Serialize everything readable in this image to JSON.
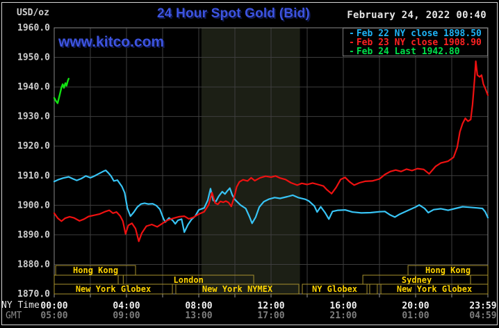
{
  "header": {
    "units": "USD/oz",
    "title": "24 Hour Spot Gold (Bid)",
    "datetime": "February 24, 2022 00:40",
    "watermark": "www.kitco.com"
  },
  "legend": {
    "items": [
      {
        "marker": "-",
        "label": "Feb 22 NY close 1898.50",
        "color": "#1fb4f7"
      },
      {
        "marker": "-",
        "label": "Feb 23 NY close 1908.90",
        "color": "#ff2222"
      },
      {
        "marker": "-",
        "label": "Feb 24 Last 1942.80",
        "color": "#00e04a"
      }
    ]
  },
  "axis_row_labels": {
    "ny": "NY Time",
    "gmt": "GMT"
  },
  "chart_data": {
    "type": "line",
    "title": "24 Hour Spot Gold (Bid)",
    "legend_position": "top-right",
    "grid": true,
    "background": "#000000",
    "colors": {
      "gridline": "#3e3e3e",
      "plot_border": "#878787",
      "tick": "#9a9a9a",
      "y_label": "#cfcfcf",
      "x_label_ny": "#f2f2f2",
      "x_label_gmt": "#7e7e7e",
      "shaded_band": "#1c1f15"
    },
    "y_axis": {
      "units": "USD/oz",
      "min": 1870,
      "max": 1960,
      "tick_step": 10,
      "tick_labels": [
        "1960.0",
        "1950.0",
        "1940.0",
        "1930.0",
        "1920.0",
        "1910.0",
        "1900.0",
        "1890.0",
        "1880.0",
        "1870.0"
      ]
    },
    "x_axis": {
      "label_top": "NY Time",
      "label_bottom": "GMT",
      "range_hours": [
        0,
        24
      ],
      "ticks": [
        {
          "h": 0,
          "ny": "00:00",
          "gmt": "05:00"
        },
        {
          "h": 4,
          "ny": "04:00",
          "gmt": "09:00"
        },
        {
          "h": 8,
          "ny": "08:00",
          "gmt": "13:00"
        },
        {
          "h": 12,
          "ny": "12:00",
          "gmt": "17:00"
        },
        {
          "h": 16,
          "ny": "16:00",
          "gmt": "21:00"
        },
        {
          "h": 20,
          "ny": "20:00",
          "gmt": "01:00"
        },
        {
          "h": 24,
          "ny": "23:59",
          "gmt": "04:59"
        }
      ]
    },
    "shaded_band_hours": [
      8.15,
      13.6
    ],
    "session_bars": {
      "label_color": "#ffd400",
      "border_color": "#a8922e",
      "rows": [
        [
          {
            "label": "Hong Kong",
            "s": 0.08,
            "e": 4.5
          },
          {
            "label": "Hong Kong",
            "s": 19.58,
            "e": 24
          }
        ],
        [
          {
            "label": "",
            "s": 0,
            "e": 3.54
          },
          {
            "label": "London",
            "s": 3.82,
            "e": 11.04
          },
          {
            "label": "Sydney",
            "s": 17.08,
            "e": 23.04
          },
          {
            "label": "",
            "s": 23.04,
            "e": 24
          }
        ],
        [
          {
            "label": "New York Globex",
            "s": 0,
            "e": 6.54
          },
          {
            "label": "New York NYMEX",
            "s": 6.73,
            "e": 13.54
          },
          {
            "label": "NY Globex",
            "s": 13.73,
            "e": 17.31
          },
          {
            "label": "",
            "s": 17.46,
            "e": 17.88
          },
          {
            "label": "New York Globex",
            "s": 18.08,
            "e": 24
          }
        ]
      ]
    },
    "series": [
      {
        "id": "feb22",
        "name": "Feb 22",
        "close": 1898.5,
        "color": "#38c4f5",
        "width": 2.2,
        "points": [
          [
            0,
            1908.0
          ],
          [
            0.25,
            1908.7
          ],
          [
            0.5,
            1909.2
          ],
          [
            0.8,
            1909.6
          ],
          [
            1.05,
            1908.9
          ],
          [
            1.25,
            1908.4
          ],
          [
            1.5,
            1909.0
          ],
          [
            1.75,
            1909.9
          ],
          [
            2.0,
            1909.3
          ],
          [
            2.2,
            1909.8
          ],
          [
            2.45,
            1910.6
          ],
          [
            2.7,
            1911.4
          ],
          [
            2.85,
            1911.8
          ],
          [
            3.0,
            1910.9
          ],
          [
            3.15,
            1909.8
          ],
          [
            3.3,
            1908.2
          ],
          [
            3.5,
            1908.5
          ],
          [
            3.75,
            1906.3
          ],
          [
            3.9,
            1904.2
          ],
          [
            4.05,
            1899.0
          ],
          [
            4.22,
            1896.3
          ],
          [
            4.4,
            1897.6
          ],
          [
            4.6,
            1899.4
          ],
          [
            4.8,
            1900.4
          ],
          [
            5.0,
            1900.7
          ],
          [
            5.2,
            1900.4
          ],
          [
            5.45,
            1900.5
          ],
          [
            5.65,
            1899.9
          ],
          [
            5.85,
            1898.6
          ],
          [
            6.05,
            1895.4
          ],
          [
            6.15,
            1894.3
          ],
          [
            6.35,
            1895.7
          ],
          [
            6.55,
            1894.9
          ],
          [
            6.7,
            1893.7
          ],
          [
            6.85,
            1894.9
          ],
          [
            7.05,
            1895.3
          ],
          [
            7.2,
            1890.9
          ],
          [
            7.4,
            1893.4
          ],
          [
            7.6,
            1895.2
          ],
          [
            7.8,
            1896.3
          ],
          [
            8.0,
            1898.4
          ],
          [
            8.3,
            1899.1
          ],
          [
            8.5,
            1901.7
          ],
          [
            8.65,
            1905.6
          ],
          [
            8.8,
            1901.6
          ],
          [
            8.95,
            1901.3
          ],
          [
            9.1,
            1903.0
          ],
          [
            9.3,
            1904.6
          ],
          [
            9.45,
            1903.8
          ],
          [
            9.6,
            1905.0
          ],
          [
            9.72,
            1905.8
          ],
          [
            9.85,
            1903.5
          ],
          [
            10.0,
            1901.9
          ],
          [
            10.3,
            1900.1
          ],
          [
            10.6,
            1898.9
          ],
          [
            10.8,
            1896.2
          ],
          [
            10.95,
            1893.9
          ],
          [
            11.15,
            1896.0
          ],
          [
            11.35,
            1899.4
          ],
          [
            11.6,
            1901.2
          ],
          [
            11.9,
            1902.1
          ],
          [
            12.2,
            1902.6
          ],
          [
            12.5,
            1902.3
          ],
          [
            12.9,
            1902.9
          ],
          [
            13.2,
            1903.4
          ],
          [
            13.5,
            1902.6
          ],
          [
            13.9,
            1902.0
          ],
          [
            14.1,
            1901.4
          ],
          [
            14.4,
            1899.7
          ],
          [
            14.55,
            1897.7
          ],
          [
            14.75,
            1899.5
          ],
          [
            15.0,
            1897.4
          ],
          [
            15.2,
            1895.3
          ],
          [
            15.4,
            1897.9
          ],
          [
            15.7,
            1898.3
          ],
          [
            16.1,
            1898.4
          ],
          [
            16.5,
            1897.7
          ],
          [
            17.0,
            1897.4
          ],
          [
            17.5,
            1897.5
          ],
          [
            18.0,
            1897.8
          ],
          [
            18.3,
            1897.9
          ],
          [
            18.6,
            1896.7
          ],
          [
            18.85,
            1896.0
          ],
          [
            19.1,
            1896.9
          ],
          [
            19.5,
            1898.0
          ],
          [
            20.0,
            1899.4
          ],
          [
            20.2,
            1900.1
          ],
          [
            20.5,
            1898.9
          ],
          [
            20.7,
            1897.5
          ],
          [
            21.0,
            1898.5
          ],
          [
            21.4,
            1898.8
          ],
          [
            21.8,
            1898.3
          ],
          [
            22.2,
            1898.9
          ],
          [
            22.6,
            1899.5
          ],
          [
            23.0,
            1899.3
          ],
          [
            23.4,
            1899.1
          ],
          [
            23.7,
            1898.9
          ],
          [
            23.85,
            1897.8
          ],
          [
            24.0,
            1895.8
          ]
        ]
      },
      {
        "id": "feb23",
        "name": "Feb 23",
        "close": 1908.9,
        "color": "#ee1111",
        "width": 2.2,
        "points": [
          [
            0,
            1897.3
          ],
          [
            0.2,
            1895.6
          ],
          [
            0.4,
            1894.6
          ],
          [
            0.6,
            1895.6
          ],
          [
            0.85,
            1896.1
          ],
          [
            1.1,
            1895.7
          ],
          [
            1.4,
            1894.7
          ],
          [
            1.65,
            1895.3
          ],
          [
            1.9,
            1896.2
          ],
          [
            2.2,
            1896.6
          ],
          [
            2.5,
            1897.0
          ],
          [
            2.8,
            1897.8
          ],
          [
            3.05,
            1898.3
          ],
          [
            3.25,
            1897.3
          ],
          [
            3.45,
            1897.7
          ],
          [
            3.65,
            1896.4
          ],
          [
            3.8,
            1894.6
          ],
          [
            3.95,
            1890.3
          ],
          [
            4.1,
            1893.2
          ],
          [
            4.3,
            1893.9
          ],
          [
            4.5,
            1892.1
          ],
          [
            4.68,
            1887.8
          ],
          [
            4.85,
            1890.6
          ],
          [
            5.1,
            1892.9
          ],
          [
            5.4,
            1893.5
          ],
          [
            5.7,
            1892.7
          ],
          [
            6.0,
            1893.9
          ],
          [
            6.3,
            1895.0
          ],
          [
            6.6,
            1895.6
          ],
          [
            6.9,
            1896.1
          ],
          [
            7.2,
            1896.3
          ],
          [
            7.45,
            1895.4
          ],
          [
            7.7,
            1895.9
          ],
          [
            8.0,
            1897.0
          ],
          [
            8.3,
            1897.8
          ],
          [
            8.55,
            1900.2
          ],
          [
            8.73,
            1904.3
          ],
          [
            8.9,
            1900.8
          ],
          [
            9.05,
            1900.3
          ],
          [
            9.2,
            1901.3
          ],
          [
            9.35,
            1901.0
          ],
          [
            9.5,
            1901.4
          ],
          [
            9.65,
            1900.9
          ],
          [
            9.8,
            1899.6
          ],
          [
            9.95,
            1902.5
          ],
          [
            10.1,
            1906.2
          ],
          [
            10.25,
            1907.9
          ],
          [
            10.45,
            1908.6
          ],
          [
            10.7,
            1908.2
          ],
          [
            10.9,
            1909.3
          ],
          [
            11.1,
            1908.3
          ],
          [
            11.4,
            1909.3
          ],
          [
            11.7,
            1909.8
          ],
          [
            12.0,
            1909.5
          ],
          [
            12.25,
            1909.9
          ],
          [
            12.5,
            1909.2
          ],
          [
            12.8,
            1908.7
          ],
          [
            13.1,
            1907.6
          ],
          [
            13.45,
            1906.8
          ],
          [
            13.7,
            1907.4
          ],
          [
            14.0,
            1907.0
          ],
          [
            14.3,
            1907.5
          ],
          [
            14.6,
            1907.0
          ],
          [
            14.9,
            1906.5
          ],
          [
            15.1,
            1905.2
          ],
          [
            15.35,
            1903.9
          ],
          [
            15.6,
            1906.0
          ],
          [
            15.85,
            1908.7
          ],
          [
            16.1,
            1909.4
          ],
          [
            16.35,
            1907.9
          ],
          [
            16.6,
            1906.8
          ],
          [
            16.9,
            1907.6
          ],
          [
            17.2,
            1908.1
          ],
          [
            17.6,
            1908.2
          ],
          [
            18.0,
            1908.9
          ],
          [
            18.3,
            1910.4
          ],
          [
            18.6,
            1911.4
          ],
          [
            18.9,
            1911.9
          ],
          [
            19.2,
            1911.4
          ],
          [
            19.5,
            1912.2
          ],
          [
            19.8,
            1911.7
          ],
          [
            20.1,
            1912.4
          ],
          [
            20.45,
            1912.1
          ],
          [
            20.75,
            1910.6
          ],
          [
            21.1,
            1913.1
          ],
          [
            21.4,
            1914.3
          ],
          [
            21.8,
            1914.9
          ],
          [
            22.1,
            1916.2
          ],
          [
            22.3,
            1919.5
          ],
          [
            22.45,
            1924.8
          ],
          [
            22.6,
            1927.6
          ],
          [
            22.75,
            1929.4
          ],
          [
            22.9,
            1928.4
          ],
          [
            23.05,
            1929.0
          ],
          [
            23.15,
            1934.0
          ],
          [
            23.27,
            1943.0
          ],
          [
            23.33,
            1948.7
          ],
          [
            23.42,
            1944.0
          ],
          [
            23.55,
            1943.4
          ],
          [
            23.65,
            1944.0
          ],
          [
            23.75,
            1941.0
          ],
          [
            23.87,
            1939.3
          ],
          [
            24.0,
            1937.2
          ]
        ]
      },
      {
        "id": "feb24",
        "name": "Feb 24",
        "last": 1942.8,
        "color": "#12e212",
        "width": 2.4,
        "points": [
          [
            0,
            1936.3
          ],
          [
            0.1,
            1935.2
          ],
          [
            0.19,
            1934.5
          ],
          [
            0.3,
            1937.2
          ],
          [
            0.4,
            1939.8
          ],
          [
            0.47,
            1940.9
          ],
          [
            0.54,
            1939.7
          ],
          [
            0.62,
            1941.3
          ],
          [
            0.68,
            1940.4
          ],
          [
            0.75,
            1942.0
          ],
          [
            0.8,
            1942.8
          ]
        ]
      }
    ]
  }
}
